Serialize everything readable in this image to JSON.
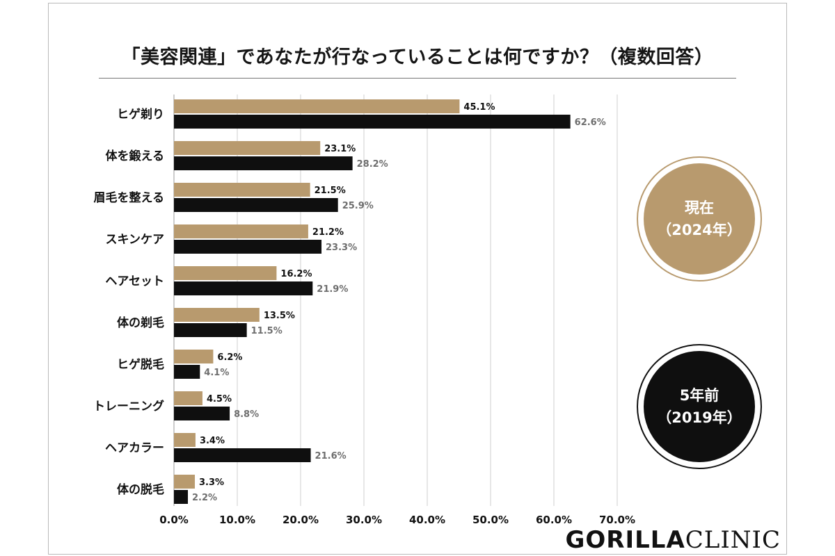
{
  "title": "「美容関連」であなたが行なっていることは何ですか？（複数回答）",
  "legend": {
    "current_line1": "現在",
    "current_line2": "（2024年）",
    "past_line1": "5年前",
    "past_line2": "（2019年）"
  },
  "logo": {
    "bold": "GORILLA",
    "light": "CLINIC"
  },
  "colors": {
    "current": "#b89a6e",
    "past": "#0f0f0f",
    "grid": "#cfcfcf"
  },
  "chart_data": {
    "type": "bar",
    "orientation": "horizontal",
    "categories": [
      "ヒゲ剃り",
      "体を鍛える",
      "眉毛を整える",
      "スキンケア",
      "ヘアセット",
      "体の剃毛",
      "ヒゲ脱毛",
      "トレーニング",
      "ヘアカラー",
      "体の脱毛"
    ],
    "series": [
      {
        "name": "現在（2024年）",
        "values": [
          45.1,
          23.1,
          21.5,
          21.2,
          16.2,
          13.5,
          6.2,
          4.5,
          3.4,
          3.3
        ]
      },
      {
        "name": "5年前（2019年）",
        "values": [
          62.6,
          28.2,
          25.9,
          23.3,
          21.9,
          11.5,
          4.1,
          8.8,
          21.6,
          2.2
        ]
      }
    ],
    "xlim": [
      0,
      70
    ],
    "xticks": [
      "0.0%",
      "10.0%",
      "20.0%",
      "30.0%",
      "40.0%",
      "50.0%",
      "60.0%",
      "70.0%"
    ],
    "value_suffix": "%",
    "grid": "vertical"
  }
}
